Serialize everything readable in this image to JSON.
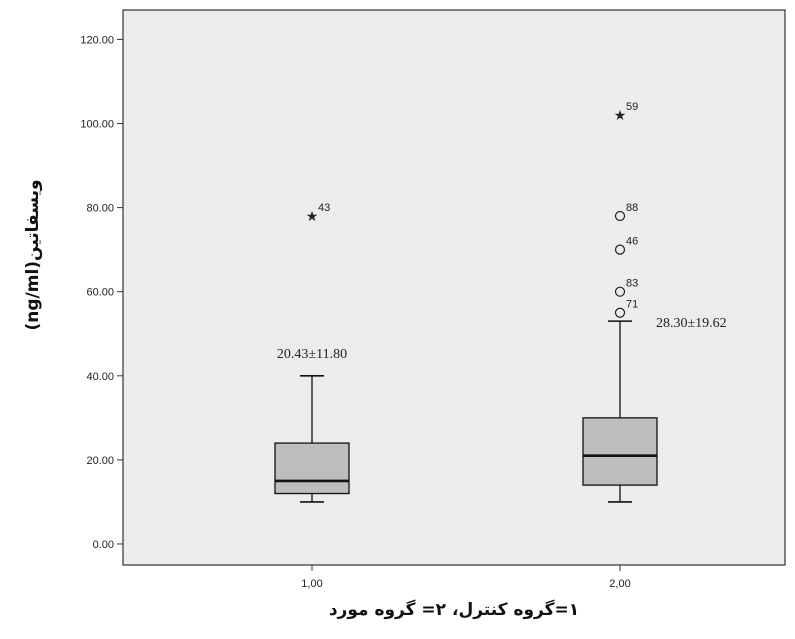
{
  "chart_data": {
    "type": "box",
    "xlabel": "۱=گروه کنترل، ۲= گروه مورد",
    "ylabel": "ویسفاتین(ng/ml)",
    "ylim": [
      -5,
      127
    ],
    "yticks": [
      0,
      20,
      40,
      60,
      80,
      100,
      120
    ],
    "ytick_labels": [
      "0.00",
      "20.00",
      "40.00",
      "60.00",
      "80.00",
      "100.00",
      "120.00"
    ],
    "grid": false,
    "plot_background": "#ececec",
    "box_color": "#bdbdbd",
    "groups": [
      {
        "label": "1,00",
        "min": 10,
        "q1": 12,
        "median": 15,
        "q3": 24,
        "max": 40,
        "annotation": "20.43±11.80",
        "outliers": [
          {
            "id": "43",
            "value": 78,
            "marker": "star"
          }
        ]
      },
      {
        "label": "2,00",
        "min": 10,
        "q1": 14,
        "median": 21,
        "q3": 30,
        "max": 53,
        "annotation": "28.30±19.62",
        "outliers": [
          {
            "id": "59",
            "value": 102,
            "marker": "star"
          },
          {
            "id": "88",
            "value": 78,
            "marker": "circle"
          },
          {
            "id": "46",
            "value": 70,
            "marker": "circle"
          },
          {
            "id": "83",
            "value": 60,
            "marker": "circle"
          },
          {
            "id": "71",
            "value": 55,
            "marker": "circle"
          }
        ]
      }
    ]
  }
}
